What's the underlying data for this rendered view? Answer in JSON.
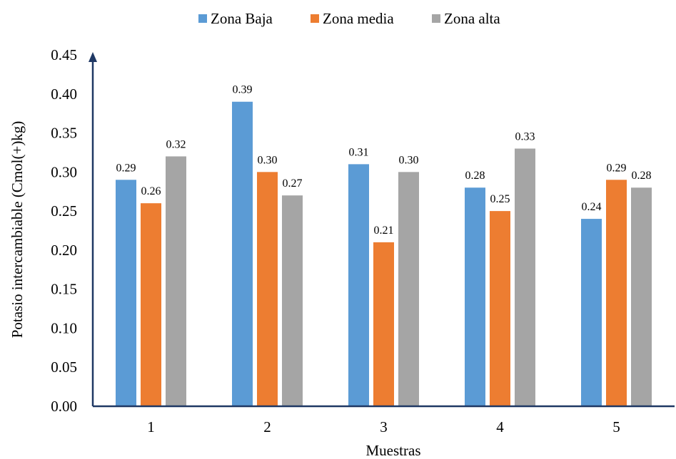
{
  "chart_data": {
    "type": "bar",
    "categories": [
      "1",
      "2",
      "3",
      "4",
      "5"
    ],
    "series": [
      {
        "name": "Zona Baja",
        "color": "#5B9BD5",
        "values": [
          0.29,
          0.39,
          0.31,
          0.28,
          0.24
        ],
        "labels": [
          "0.29",
          "0.39",
          "0.31",
          "0.28",
          "0.24"
        ]
      },
      {
        "name": "Zona media",
        "color": "#ED7D31",
        "values": [
          0.26,
          0.3,
          0.21,
          0.25,
          0.29
        ],
        "labels": [
          "0.26",
          "0.30",
          "0.21",
          "0.25",
          "0.29"
        ]
      },
      {
        "name": "Zona alta",
        "color": "#A5A5A5",
        "values": [
          0.32,
          0.27,
          0.3,
          0.33,
          0.28
        ],
        "labels": [
          "0.32",
          "0.27",
          "0.30",
          "0.33",
          "0.28"
        ]
      }
    ],
    "xlabel": "Muestras",
    "ylabel": "Potasio intercambiable (Cmol(+)kg)",
    "ylim": [
      0,
      0.45
    ],
    "yticks": [
      "0.00",
      "0.05",
      "0.10",
      "0.15",
      "0.20",
      "0.25",
      "0.30",
      "0.35",
      "0.40",
      "0.45"
    ],
    "grid": false,
    "legend_position": "top",
    "axis_color": "#1F3864"
  }
}
